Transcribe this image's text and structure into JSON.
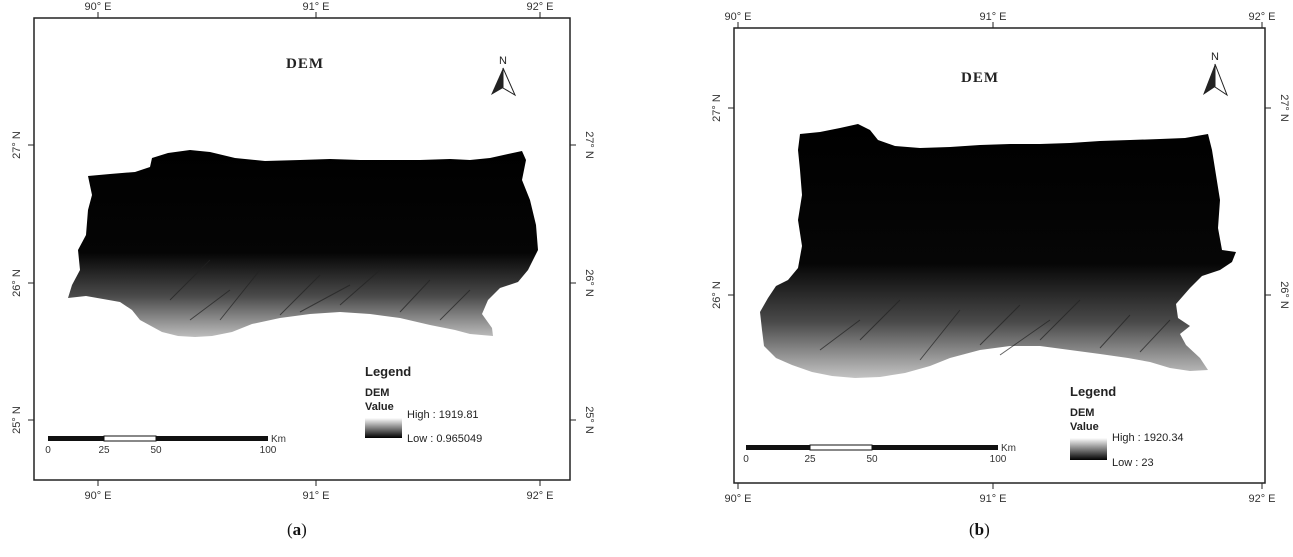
{
  "panels": [
    {
      "id": "a",
      "title": "DEM",
      "north": "N",
      "ticks_top": [
        "90° E",
        "91° E",
        "92° E"
      ],
      "ticks_bottom": [
        "90° E",
        "91° E",
        "92° E"
      ],
      "ticks_left": [
        "27° N",
        "26° N",
        "25° N"
      ],
      "ticks_right": [
        "27° N",
        "26° N",
        "25° N"
      ],
      "legend": {
        "heading": "Legend",
        "layer": "DEM",
        "field": "Value",
        "high": "High : 1919.81",
        "low": "Low : 0.965049"
      },
      "scalebar": {
        "labels": [
          "0",
          "25",
          "50",
          "100"
        ],
        "unit": "Km"
      },
      "caption_open": "(",
      "caption_label": "a",
      "caption_close": ")"
    },
    {
      "id": "b",
      "title": "DEM",
      "north": "N",
      "ticks_top": [
        "90° E",
        "91° E",
        "92° E"
      ],
      "ticks_bottom": [
        "90° E",
        "91° E",
        "92° E"
      ],
      "ticks_left": [
        "27° N",
        "26° N"
      ],
      "ticks_right": [
        "27° N",
        "26° N"
      ],
      "legend": {
        "heading": "Legend",
        "layer": "DEM",
        "field": "Value",
        "high": "High : 1920.34",
        "low": "Low : 23"
      },
      "scalebar": {
        "labels": [
          "0",
          "25",
          "50",
          "100"
        ],
        "unit": "Km"
      },
      "caption_open": "(",
      "caption_label": "b",
      "caption_close": ")"
    }
  ],
  "colors": {
    "dem_high": "#ffffff",
    "dem_low": "#000000"
  }
}
